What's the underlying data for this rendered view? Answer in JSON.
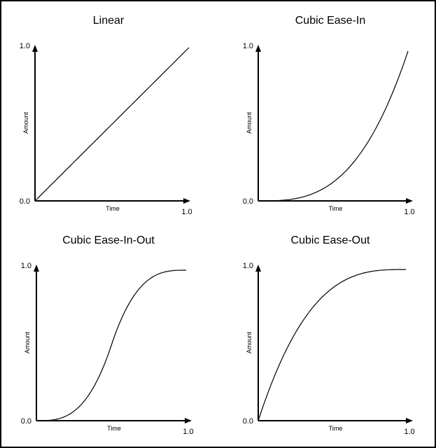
{
  "chart_data": [
    {
      "type": "line",
      "title": "Linear",
      "xlabel": "Time",
      "ylabel": "Amount",
      "x_tick": "1.0",
      "y_tick_top": "1.0",
      "origin_tick": "0.0",
      "xlim": [
        0,
        1
      ],
      "ylim": [
        0,
        1
      ],
      "easing": "linear",
      "series": [
        {
          "x": [
            0,
            0.25,
            0.5,
            0.75,
            1.0
          ],
          "y": [
            0,
            0.25,
            0.5,
            0.75,
            1.0
          ]
        }
      ]
    },
    {
      "type": "line",
      "title": "Cubic Ease-In",
      "xlabel": "Time",
      "ylabel": "Amount",
      "x_tick": "1.0",
      "y_tick_top": "1.0",
      "origin_tick": "0.0",
      "xlim": [
        0,
        1
      ],
      "ylim": [
        0,
        1
      ],
      "easing": "cubic-in",
      "series": [
        {
          "x": [
            0,
            0.25,
            0.5,
            0.75,
            1.0
          ],
          "y": [
            0,
            0.016,
            0.125,
            0.422,
            1.0
          ]
        }
      ]
    },
    {
      "type": "line",
      "title": "Cubic Ease-In-Out",
      "xlabel": "Time",
      "ylabel": "Amount",
      "x_tick": "1.0",
      "y_tick_top": "1.0",
      "origin_tick": "0.0",
      "xlim": [
        0,
        1
      ],
      "ylim": [
        0,
        1
      ],
      "easing": "cubic-in-out",
      "series": [
        {
          "x": [
            0,
            0.25,
            0.5,
            0.75,
            1.0
          ],
          "y": [
            0,
            0.0625,
            0.5,
            0.9375,
            1.0
          ]
        }
      ]
    },
    {
      "type": "line",
      "title": "Cubic Ease-Out",
      "xlabel": "Time",
      "ylabel": "Amount",
      "x_tick": "1.0",
      "y_tick_top": "1.0",
      "origin_tick": "0.0",
      "xlim": [
        0,
        1
      ],
      "ylim": [
        0,
        1
      ],
      "easing": "cubic-out",
      "series": [
        {
          "x": [
            0,
            0.25,
            0.5,
            0.75,
            1.0
          ],
          "y": [
            0,
            0.578,
            0.875,
            0.984,
            1.0
          ]
        }
      ]
    }
  ]
}
